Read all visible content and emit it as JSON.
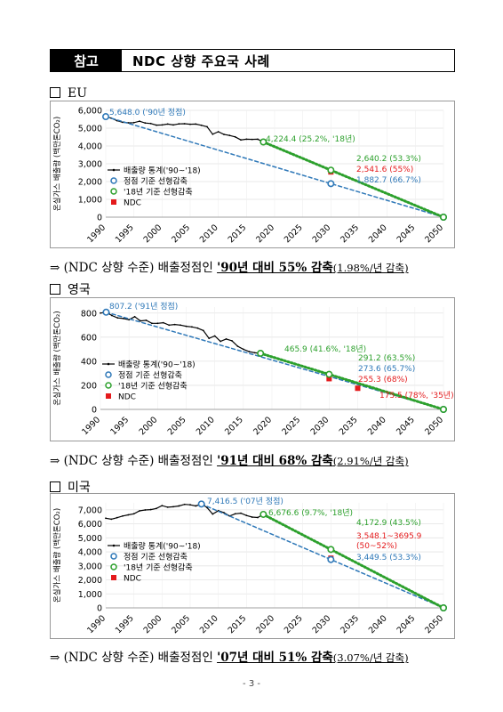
{
  "header": {
    "tag": "참고",
    "title": "NDC 상향 주요국 사례"
  },
  "sections": [
    {
      "label": "EU",
      "conclusion": {
        "prefix": "⇒ (NDC 상향 수준) 배출정점인 ",
        "highlight": "'90년 대비 55% 감축",
        "rate": "(1.98%/년 감축)"
      },
      "chart_data": {
        "type": "line",
        "ylabel": "온실가스 배출량 (백만톤CO₂)",
        "ylim": [
          0,
          6000
        ],
        "yticks": [
          "6,000",
          "5,000",
          "4,000",
          "3,000",
          "2,000",
          "1,000",
          "0"
        ],
        "xticks": [
          "1990",
          "1995",
          "2000",
          "2005",
          "2010",
          "2015",
          "2020",
          "2025",
          "2030",
          "2035",
          "2040",
          "2045",
          "2050"
        ],
        "legend": [
          "배출량 통계('90~'18)",
          "정점 기준 선형감축",
          "'18년 기준 선형감축",
          "NDC"
        ],
        "series": [
          {
            "name": "배출량 통계('90~'18)",
            "x": [
              1990,
              1991,
              1992,
              1993,
              1994,
              1995,
              1996,
              1997,
              1998,
              1999,
              2000,
              2001,
              2002,
              2003,
              2004,
              2005,
              2006,
              2007,
              2008,
              2009,
              2010,
              2011,
              2012,
              2013,
              2014,
              2015,
              2016,
              2017,
              2018
            ],
            "y": [
              5648,
              5560,
              5420,
              5330,
              5300,
              5310,
              5390,
              5290,
              5260,
              5170,
              5180,
              5230,
              5180,
              5240,
              5250,
              5220,
              5230,
              5160,
              5080,
              4660,
              4800,
              4650,
              4590,
              4510,
              4340,
              4380,
              4370,
              4380,
              4224.4
            ]
          },
          {
            "name": "정점 기준 선형감축",
            "x": [
              1990,
              2050
            ],
            "y": [
              5648,
              0
            ]
          },
          {
            "name": "'18년 기준 선형감축",
            "x": [
              2018,
              2050
            ],
            "y": [
              4224.4,
              0
            ]
          }
        ],
        "points": [
          {
            "x": 2030,
            "y": 2541.6,
            "kind": "ndc"
          },
          {
            "x": 2030,
            "y": 2640.2,
            "kind": "green"
          },
          {
            "x": 2030,
            "y": 1882.7,
            "kind": "blue"
          }
        ],
        "annotations": [
          {
            "text": "5,648.0 ('90년 정점)",
            "color": "#2e78b8"
          },
          {
            "text": "4,224.4 (25.2%, '18년)",
            "color": "#2ca02c"
          },
          {
            "text": "2,640.2 (53.3%)",
            "color": "#2ca02c"
          },
          {
            "text": "2,541.6 (55%)",
            "color": "#e41a1c"
          },
          {
            "text": "1,882.7 (66.7%)",
            "color": "#2e78b8"
          }
        ]
      }
    },
    {
      "label": "영국",
      "conclusion": {
        "prefix": "⇒ (NDC 상향 수준) 배출정점인 ",
        "highlight": "'91년 대비 68% 감축",
        "rate": "(2.91%/년 감축)"
      },
      "chart_data": {
        "type": "line",
        "ylabel": "온실가스 배출량 (백만톤CO₂)",
        "ylim": [
          0,
          850
        ],
        "yticks": [
          "800",
          "600",
          "400",
          "200",
          "0"
        ],
        "yvals": [
          800,
          600,
          400,
          200,
          0
        ],
        "xticks": [
          "1990",
          "1995",
          "2000",
          "2005",
          "2010",
          "2015",
          "2020",
          "2025",
          "2030",
          "2035",
          "2040",
          "2045",
          "2050"
        ],
        "legend": [
          "배출량 통계('90~'18)",
          "정점 기준 선형감축",
          "'18년 기준 선형감축",
          "NDC"
        ],
        "series": [
          {
            "name": "배출량 통계('90~'18)",
            "x": [
              1990,
              1991,
              1992,
              1993,
              1994,
              1995,
              1996,
              1997,
              1998,
              1999,
              2000,
              2001,
              2002,
              2003,
              2004,
              2005,
              2006,
              2007,
              2008,
              2009,
              2010,
              2011,
              2012,
              2013,
              2014,
              2015,
              2016,
              2017,
              2018
            ],
            "y": [
              800,
              807.2,
              780,
              760,
              755,
              745,
              770,
              735,
              740,
              715,
              715,
              720,
              700,
              705,
              700,
              690,
              685,
              675,
              655,
              590,
              610,
              565,
              585,
              570,
              525,
              500,
              480,
              470,
              465.9
            ]
          },
          {
            "name": "정점 기준 선형감축",
            "x": [
              1991,
              2050
            ],
            "y": [
              807.2,
              0
            ]
          },
          {
            "name": "'18년 기준 선형감축",
            "x": [
              2018,
              2050
            ],
            "y": [
              465.9,
              0
            ]
          }
        ],
        "points": [
          {
            "x": 2030,
            "y": 255.3,
            "kind": "ndc"
          },
          {
            "x": 2035,
            "y": 175.5,
            "kind": "ndc"
          },
          {
            "x": 2030,
            "y": 291.2,
            "kind": "green"
          }
        ],
        "annotations": [
          {
            "text": "807.2 ('91년 정점)",
            "color": "#2e78b8"
          },
          {
            "text": "465.9 (41.6%, '18년)",
            "color": "#2ca02c"
          },
          {
            "text": "291.2 (63.5%)",
            "color": "#2ca02c"
          },
          {
            "text": "273.6 (65.7%)",
            "color": "#2e78b8"
          },
          {
            "text": "255.3 (68%)",
            "color": "#e41a1c"
          },
          {
            "text": "175.5 (78%, '35년)",
            "color": "#e41a1c"
          }
        ]
      }
    },
    {
      "label": "미국",
      "conclusion": {
        "prefix": "⇒ (NDC 상향 수준) 배출정점인 ",
        "highlight": "'07년 대비 51% 감축",
        "rate": "(3.07%/년 감축)"
      },
      "chart_data": {
        "type": "line",
        "ylabel": "온실가스 배출량 (백만톤CO₂)",
        "ylim": [
          0,
          7500
        ],
        "yticks": [
          "7,000",
          "6,000",
          "5,000",
          "4,000",
          "3,000",
          "2,000",
          "1,000",
          "0"
        ],
        "yvals": [
          7000,
          6000,
          5000,
          4000,
          3000,
          2000,
          1000,
          0
        ],
        "xticks": [
          "1990",
          "1995",
          "2000",
          "2005",
          "2010",
          "2015",
          "2020",
          "2025",
          "2030",
          "2035",
          "2040",
          "2045",
          "2050"
        ],
        "legend": [
          "배출량 통계('90~'18)",
          "정점 기준 선형감축",
          "'18년 기준 선형감축",
          "NDC"
        ],
        "series": [
          {
            "name": "배출량 통계('90~'18)",
            "x": [
              1990,
              1991,
              1992,
              1993,
              1994,
              1995,
              1996,
              1997,
              1998,
              1999,
              2000,
              2001,
              2002,
              2003,
              2004,
              2005,
              2006,
              2007,
              2008,
              2009,
              2010,
              2011,
              2012,
              2013,
              2014,
              2015,
              2016,
              2017,
              2018
            ],
            "y": [
              6400,
              6330,
              6440,
              6560,
              6640,
              6720,
              6930,
              6990,
              7020,
              7100,
              7300,
              7190,
              7220,
              7280,
              7390,
              7360,
              7280,
              7416.5,
              7160,
              6700,
              6940,
              6800,
              6560,
              6720,
              6760,
              6600,
              6480,
              6450,
              6676.6
            ]
          },
          {
            "name": "정점 기준 선형감축",
            "x": [
              2007,
              2050
            ],
            "y": [
              7416.5,
              0
            ]
          },
          {
            "name": "'18년 기준 선형감축",
            "x": [
              2018,
              2050
            ],
            "y": [
              6676.6,
              0
            ]
          }
        ],
        "points": [
          {
            "x": 2030,
            "y": 3548.1,
            "kind": "ndc"
          },
          {
            "x": 2030,
            "y": 4172.9,
            "kind": "green"
          },
          {
            "x": 2030,
            "y": 3449.5,
            "kind": "blue"
          }
        ],
        "annotations": [
          {
            "text": "7,416.5 ('07년 정점)",
            "color": "#2e78b8"
          },
          {
            "text": "6,676.6 (9.7%, '18년)",
            "color": "#2ca02c"
          },
          {
            "text": "4,172.9 (43.5%)",
            "color": "#2ca02c"
          },
          {
            "text": "3,548.1~3695.9",
            "color": "#e41a1c"
          },
          {
            "text": "(50~52%)",
            "color": "#e41a1c"
          },
          {
            "text": "3,449.5 (53.3%)",
            "color": "#2e78b8"
          }
        ]
      }
    }
  ],
  "page_number": "- 3 -",
  "colors": {
    "actual": "#000000",
    "peak": "#2e78b8",
    "base18": "#2ca02c",
    "ndc": "#e41a1c"
  }
}
